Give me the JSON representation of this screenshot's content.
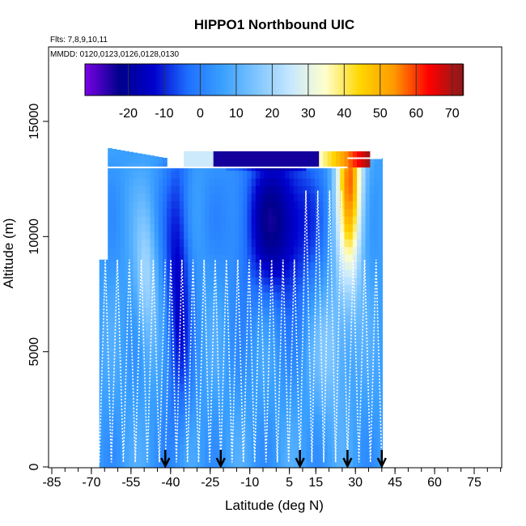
{
  "chart_data": {
    "type": "heatmap",
    "title": "HIPPO1 Northbound UIC",
    "flights_label": "Flts: 7,8,9,10,11",
    "dates_label": "MMDD: 0120,0123,0126,0128,0130",
    "xlabel": "Latitude (deg N)",
    "ylabel": "Altitude (m)",
    "xlim": [
      -85,
      85
    ],
    "ylim": [
      0,
      17500
    ],
    "x_ticks": [
      -85,
      -70,
      -55,
      -40,
      -25,
      -10,
      5,
      15,
      30,
      45,
      60,
      75
    ],
    "x_tick_labels": [
      "-85",
      "-70",
      "-55",
      "-40",
      "-25",
      "-10",
      "5",
      "15",
      "30",
      "45",
      "60",
      "75"
    ],
    "y_ticks": [
      0,
      5000,
      10000,
      15000
    ],
    "y_tick_labels": [
      "0",
      "5000",
      "10000",
      "15000"
    ],
    "colorbar": {
      "min": -30,
      "max": 75,
      "ticks": [
        -20,
        -10,
        0,
        10,
        20,
        30,
        40,
        50,
        60,
        70
      ],
      "tick_labels": [
        "-20",
        "-10",
        "0",
        "10",
        "20",
        "30",
        "40",
        "50",
        "60",
        "70"
      ],
      "colors": [
        "#7a00e6",
        "#00008b",
        "#0000cd",
        "#1e6fff",
        "#3aa0ff",
        "#7fc6ff",
        "#c8e8ff",
        "#ffffcc",
        "#ffd700",
        "#ff9900",
        "#ff0000",
        "#8b1a1a"
      ]
    },
    "profile_markers_lat": [
      -42,
      -21,
      9,
      27,
      40
    ],
    "profile_ceiling_m": [
      13000,
      13000,
      13000,
      13000,
      13400
    ],
    "flight_segments": [
      {
        "name": "flight 7",
        "lat_range": [
          -67,
          -42
        ]
      },
      {
        "name": "flight 8",
        "lat_range": [
          -42,
          -21
        ]
      },
      {
        "name": "flight 9",
        "lat_range": [
          -21,
          9
        ]
      },
      {
        "name": "flight 10",
        "lat_range": [
          9,
          27
        ]
      },
      {
        "name": "flight 11",
        "lat_range": [
          27,
          40
        ]
      }
    ]
  }
}
